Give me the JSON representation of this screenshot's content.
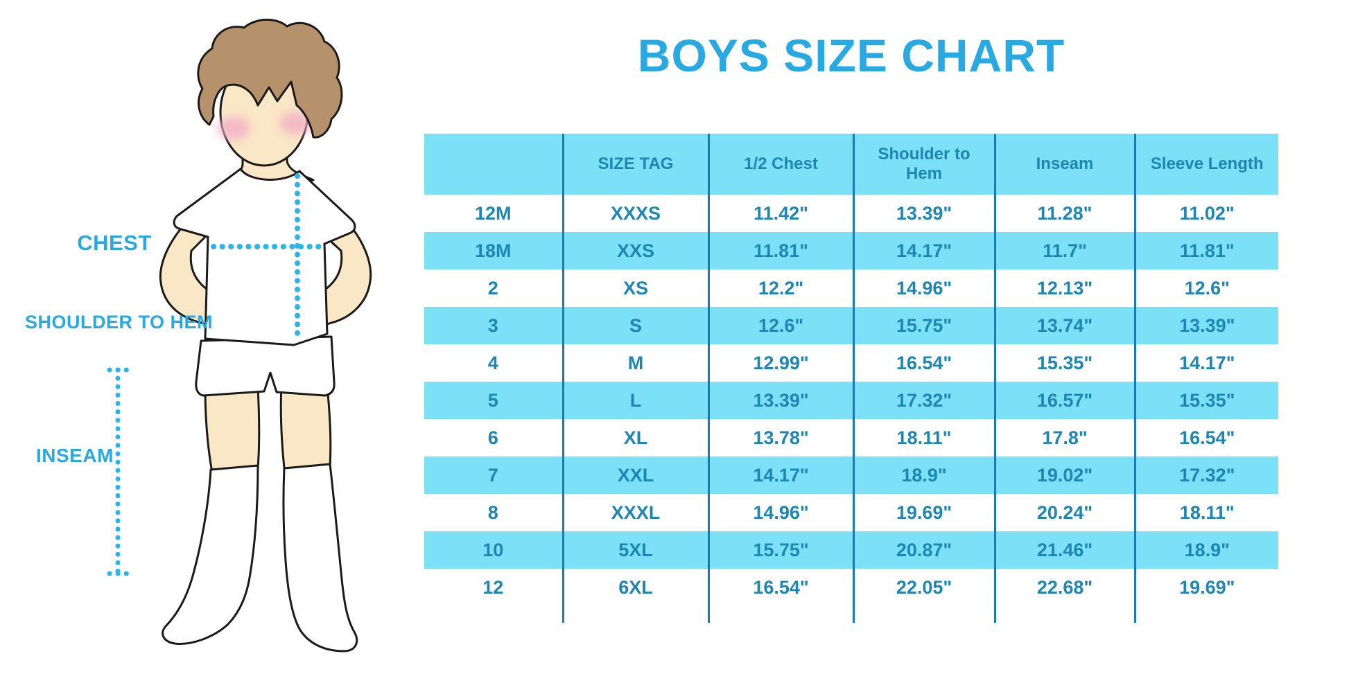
{
  "title": "BOYS SIZE CHART",
  "illustration": {
    "labels": {
      "chest": "CHEST",
      "shoulder_to_hem": "SHOULDER TO HEM",
      "inseam": "INSEAM"
    },
    "colors": {
      "label_blue": "#29A9E2",
      "dotted_line_cyan": "#2BB4EA",
      "hair_brown": "#B6926C",
      "skin": "#FAE7C5",
      "blush_pink": "#F2AEC6",
      "outline": "#1A1A1A",
      "clothing": "#FFFFFF"
    }
  },
  "chart_data": {
    "type": "table",
    "title": "BOYS SIZE CHART",
    "columns": [
      "",
      "SIZE TAG",
      "1/2 Chest",
      "Shoulder to Hem",
      "Inseam",
      "Sleeve Length"
    ],
    "rows": [
      [
        "12M",
        "XXXS",
        "11.42\"",
        "13.39\"",
        "11.28\"",
        "11.02\""
      ],
      [
        "18M",
        "XXS",
        "11.81\"",
        "14.17\"",
        "11.7\"",
        "11.81\""
      ],
      [
        "2",
        "XS",
        "12.2\"",
        "14.96\"",
        "12.13\"",
        "12.6\""
      ],
      [
        "3",
        "S",
        "12.6\"",
        "15.75\"",
        "13.74\"",
        "13.39\""
      ],
      [
        "4",
        "M",
        "12.99\"",
        "16.54\"",
        "15.35\"",
        "14.17\""
      ],
      [
        "5",
        "L",
        "13.39\"",
        "17.32\"",
        "16.57\"",
        "15.35\""
      ],
      [
        "6",
        "XL",
        "13.78\"",
        "18.11\"",
        "17.8\"",
        "16.54\""
      ],
      [
        "7",
        "XXL",
        "14.17\"",
        "18.9\"",
        "19.02\"",
        "17.32\""
      ],
      [
        "8",
        "XXXL",
        "14.96\"",
        "19.69\"",
        "20.24\"",
        "18.11\""
      ],
      [
        "10",
        "5XL",
        "15.75\"",
        "20.87\"",
        "21.46\"",
        "18.9\""
      ],
      [
        "12",
        "6XL",
        "16.54\"",
        "22.05\"",
        "22.68\"",
        "19.69\""
      ]
    ],
    "layout": {
      "header_background": "#7CE0F7",
      "striped_row_background": "#7CE0F7",
      "text_color": "#1D86B2",
      "grid_color": "#1779B5",
      "title_color": "#29A9E2",
      "striped_rows": [
        "18M",
        "3",
        "5",
        "7",
        "10"
      ],
      "units": "inches"
    }
  }
}
